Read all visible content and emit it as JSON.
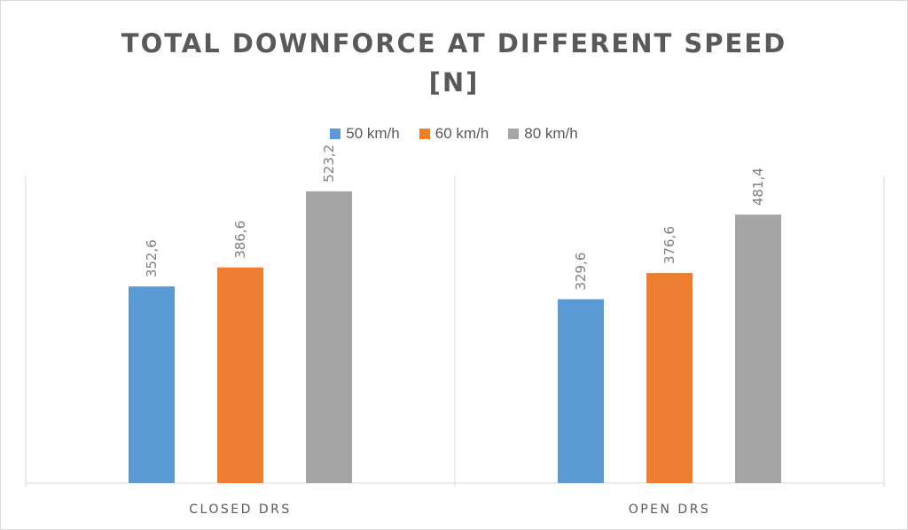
{
  "chart_data": {
    "type": "bar",
    "title": "TOTAL DOWNFORCE AT DIFFERENT SPEED\n[N]",
    "xlabel": "",
    "ylabel": "",
    "categories": [
      "CLOSED DRS",
      "OPEN DRS"
    ],
    "series": [
      {
        "name": "50 km/h",
        "values": [
          352.6,
          329.6
        ],
        "labels": [
          "352,6",
          "329,6"
        ],
        "color": "#5b9bd5"
      },
      {
        "name": "60 km/h",
        "values": [
          386.6,
          376.6
        ],
        "labels": [
          "386,6",
          "376,6"
        ],
        "color": "#ed7d31"
      },
      {
        "name": "80 km/h",
        "values": [
          523.2,
          481.4
        ],
        "labels": [
          "523,2",
          "481,4"
        ],
        "color": "#a5a5a5"
      }
    ],
    "ylim": [
      0,
      550
    ],
    "grid": false,
    "legend_position": "top",
    "data_labels_rotated": true
  }
}
